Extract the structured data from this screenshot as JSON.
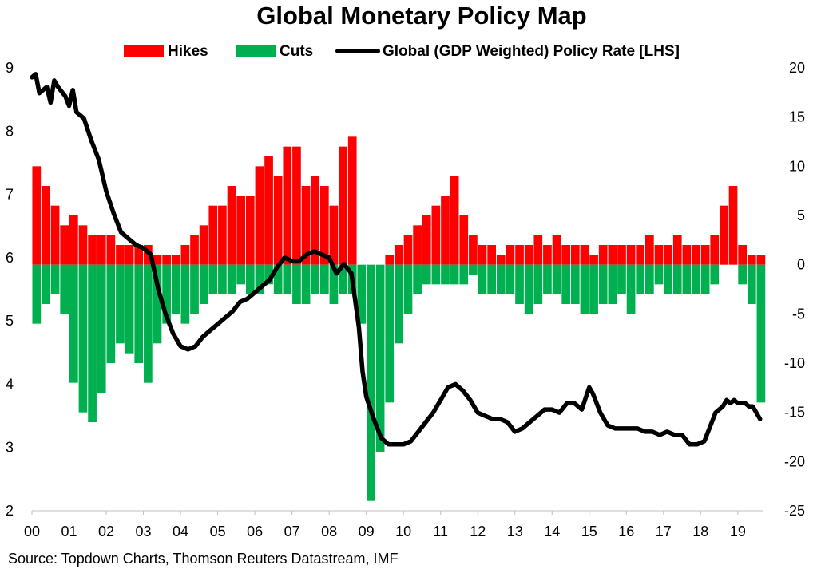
{
  "chart_data": {
    "type": "bar",
    "title": "Global Monetary Policy Map",
    "source": "Source: Topdown Charts, Thomson Reuters Datastream, IMF",
    "legend": {
      "placement": "top",
      "items": [
        {
          "name": "Hikes",
          "color": "#ff0000",
          "kind": "bar"
        },
        {
          "name": "Cuts",
          "color": "#00b050",
          "kind": "bar"
        },
        {
          "name": "Global (GDP Weighted) Policy Rate [LHS]",
          "color": "#000000",
          "kind": "line"
        }
      ]
    },
    "x_axis": {
      "labels": [
        "00",
        "01",
        "02",
        "03",
        "04",
        "05",
        "06",
        "07",
        "08",
        "09",
        "10",
        "11",
        "12",
        "13",
        "14",
        "15",
        "16",
        "17",
        "18",
        "19"
      ],
      "range": [
        2000.0,
        2019.67
      ]
    },
    "y_left": {
      "range": [
        2,
        9
      ],
      "ticks": [
        "2",
        "3",
        "4",
        "5",
        "6",
        "7",
        "8",
        "9"
      ]
    },
    "y_right": {
      "range": [
        -25,
        20
      ],
      "ticks": [
        "20",
        "15",
        "10",
        "5",
        "0",
        "-5",
        "-10",
        "-15",
        "-20",
        "-25"
      ]
    },
    "colors": {
      "hikes": "#ff0000",
      "cuts": "#00b050",
      "line": "#000000"
    },
    "series": [
      {
        "name": "Hikes",
        "axis": "right",
        "x": [
          2000.0,
          2000.25,
          2000.5,
          2000.75,
          2001.0,
          2001.25,
          2001.5,
          2001.75,
          2002.0,
          2002.25,
          2002.5,
          2002.75,
          2003.0,
          2003.25,
          2003.5,
          2003.75,
          2004.0,
          2004.25,
          2004.5,
          2004.75,
          2005.0,
          2005.25,
          2005.5,
          2005.75,
          2006.0,
          2006.25,
          2006.5,
          2006.75,
          2007.0,
          2007.25,
          2007.5,
          2007.75,
          2008.0,
          2008.25,
          2008.5,
          2008.75,
          2009.0,
          2009.25,
          2009.5,
          2009.75,
          2010.0,
          2010.25,
          2010.5,
          2010.75,
          2011.0,
          2011.25,
          2011.5,
          2011.75,
          2012.0,
          2012.25,
          2012.5,
          2012.75,
          2013.0,
          2013.25,
          2013.5,
          2013.75,
          2014.0,
          2014.25,
          2014.5,
          2014.75,
          2015.0,
          2015.25,
          2015.5,
          2015.75,
          2016.0,
          2016.25,
          2016.5,
          2016.75,
          2017.0,
          2017.25,
          2017.5,
          2017.75,
          2018.0,
          2018.25,
          2018.5,
          2018.75,
          2019.0,
          2019.25,
          2019.5
        ],
        "values": [
          10,
          8,
          6,
          4,
          5,
          4,
          3,
          3,
          3,
          2,
          2,
          2,
          2,
          1,
          1,
          1,
          2,
          3,
          4,
          6,
          6,
          8,
          7,
          7,
          10,
          11,
          9,
          12,
          12,
          8,
          9,
          8,
          6,
          12,
          13,
          0,
          0,
          0,
          1,
          2,
          3,
          4,
          5,
          6,
          7,
          9,
          5,
          3,
          2,
          2,
          1,
          2,
          2,
          2,
          3,
          2,
          3,
          2,
          2,
          2,
          1,
          2,
          2,
          2,
          2,
          2,
          3,
          2,
          2,
          3,
          2,
          2,
          2,
          3,
          6,
          8,
          2,
          1,
          1
        ]
      },
      {
        "name": "Cuts",
        "axis": "right",
        "x": [
          2000.0,
          2000.25,
          2000.5,
          2000.75,
          2001.0,
          2001.25,
          2001.5,
          2001.75,
          2002.0,
          2002.25,
          2002.5,
          2002.75,
          2003.0,
          2003.25,
          2003.5,
          2003.75,
          2004.0,
          2004.25,
          2004.5,
          2004.75,
          2005.0,
          2005.25,
          2005.5,
          2005.75,
          2006.0,
          2006.25,
          2006.5,
          2006.75,
          2007.0,
          2007.25,
          2007.5,
          2007.75,
          2008.0,
          2008.25,
          2008.5,
          2008.75,
          2009.0,
          2009.25,
          2009.5,
          2009.75,
          2010.0,
          2010.25,
          2010.5,
          2010.75,
          2011.0,
          2011.25,
          2011.5,
          2011.75,
          2012.0,
          2012.25,
          2012.5,
          2012.75,
          2013.0,
          2013.25,
          2013.5,
          2013.75,
          2014.0,
          2014.25,
          2014.5,
          2014.75,
          2015.0,
          2015.25,
          2015.5,
          2015.75,
          2016.0,
          2016.25,
          2016.5,
          2016.75,
          2017.0,
          2017.25,
          2017.5,
          2017.75,
          2018.0,
          2018.25,
          2018.5,
          2018.75,
          2019.0,
          2019.25,
          2019.5
        ],
        "values": [
          -6,
          -4,
          -3,
          -5,
          -12,
          -15,
          -16,
          -13,
          -10,
          -8,
          -9,
          -10,
          -12,
          -8,
          -6,
          -5,
          -6,
          -5,
          -4,
          -3,
          -3,
          -3,
          -2,
          -3,
          -3,
          -2,
          -3,
          -3,
          -4,
          -4,
          -3,
          -3,
          -4,
          -3,
          -3,
          -6,
          -24,
          -19,
          -14,
          -8,
          -5,
          -3,
          -2,
          -2,
          -2,
          -2,
          -2,
          -1,
          -3,
          -3,
          -3,
          -3,
          -4,
          -5,
          -4,
          -3,
          -3,
          -4,
          -4,
          -5,
          -5,
          -4,
          -4,
          -3,
          -5,
          -3,
          -3,
          -2,
          -3,
          -3,
          -3,
          -3,
          -3,
          -2,
          0,
          0,
          -2,
          -4,
          -14
        ]
      },
      {
        "name": "Global (GDP Weighted) Policy Rate [LHS]",
        "axis": "left",
        "x": [
          2000.0,
          2000.1,
          2000.2,
          2000.4,
          2000.5,
          2000.6,
          2000.7,
          2000.9,
          2001.0,
          2001.1,
          2001.2,
          2001.4,
          2001.6,
          2001.8,
          2002.0,
          2002.2,
          2002.4,
          2002.6,
          2002.8,
          2003.0,
          2003.2,
          2003.4,
          2003.6,
          2003.8,
          2004.0,
          2004.2,
          2004.4,
          2004.6,
          2004.8,
          2005.0,
          2005.2,
          2005.4,
          2005.6,
          2005.8,
          2006.0,
          2006.2,
          2006.4,
          2006.6,
          2006.8,
          2007.0,
          2007.2,
          2007.4,
          2007.6,
          2007.8,
          2008.0,
          2008.2,
          2008.4,
          2008.6,
          2008.8,
          2008.9,
          2009.0,
          2009.2,
          2009.4,
          2009.6,
          2009.8,
          2010.0,
          2010.2,
          2010.4,
          2010.6,
          2010.8,
          2011.0,
          2011.2,
          2011.4,
          2011.6,
          2011.8,
          2012.0,
          2012.2,
          2012.4,
          2012.6,
          2012.8,
          2013.0,
          2013.2,
          2013.4,
          2013.6,
          2013.8,
          2014.0,
          2014.2,
          2014.4,
          2014.6,
          2014.8,
          2015.0,
          2015.1,
          2015.3,
          2015.5,
          2015.7,
          2015.9,
          2016.1,
          2016.3,
          2016.5,
          2016.7,
          2016.9,
          2017.1,
          2017.3,
          2017.5,
          2017.7,
          2017.9,
          2018.1,
          2018.3,
          2018.4,
          2018.5,
          2018.6,
          2018.7,
          2018.8,
          2018.9,
          2019.0,
          2019.1,
          2019.2,
          2019.3,
          2019.4,
          2019.5,
          2019.6
        ],
        "values": [
          8.85,
          8.9,
          8.6,
          8.7,
          8.45,
          8.8,
          8.7,
          8.55,
          8.4,
          8.65,
          8.3,
          8.2,
          7.85,
          7.55,
          7.05,
          6.7,
          6.4,
          6.3,
          6.2,
          6.15,
          6.05,
          5.5,
          5.1,
          4.8,
          4.6,
          4.55,
          4.6,
          4.75,
          4.85,
          4.95,
          5.05,
          5.15,
          5.3,
          5.35,
          5.45,
          5.55,
          5.65,
          5.85,
          6.0,
          5.95,
          5.95,
          6.05,
          6.1,
          6.05,
          6.0,
          5.75,
          5.9,
          5.75,
          4.9,
          4.2,
          3.8,
          3.45,
          3.15,
          3.05,
          3.05,
          3.05,
          3.1,
          3.25,
          3.4,
          3.55,
          3.75,
          3.95,
          4.0,
          3.9,
          3.75,
          3.55,
          3.5,
          3.45,
          3.45,
          3.4,
          3.25,
          3.3,
          3.4,
          3.5,
          3.6,
          3.6,
          3.55,
          3.7,
          3.7,
          3.6,
          3.95,
          3.85,
          3.55,
          3.35,
          3.3,
          3.3,
          3.3,
          3.3,
          3.25,
          3.25,
          3.2,
          3.25,
          3.2,
          3.2,
          3.05,
          3.05,
          3.1,
          3.4,
          3.55,
          3.6,
          3.65,
          3.75,
          3.7,
          3.75,
          3.7,
          3.7,
          3.7,
          3.65,
          3.65,
          3.55,
          3.45
        ]
      }
    ]
  }
}
